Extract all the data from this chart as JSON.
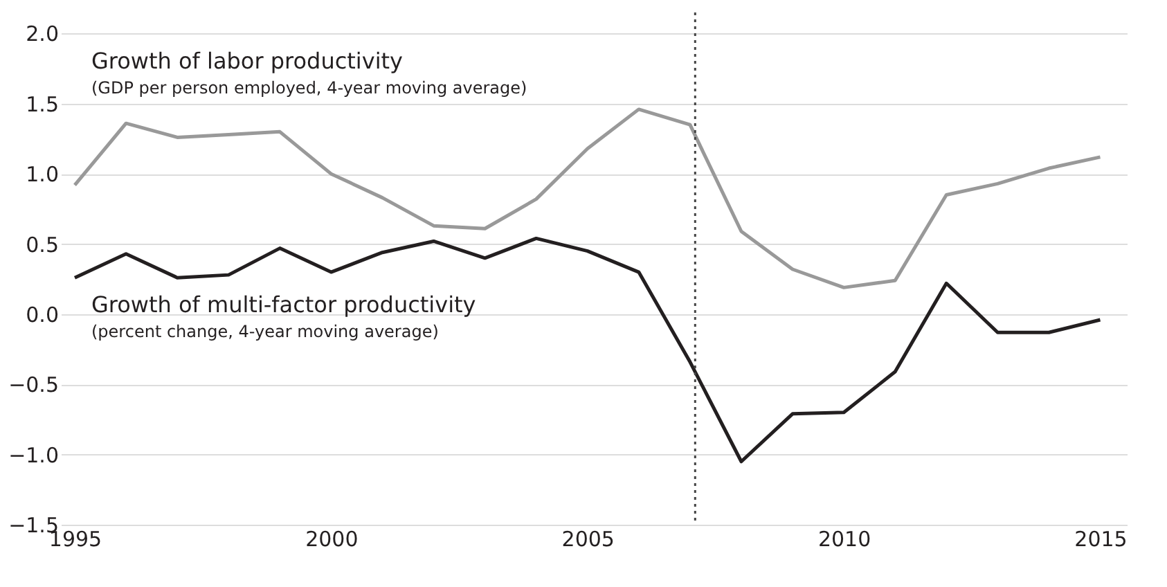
{
  "chart_data": {
    "type": "line",
    "x": [
      1995,
      1996,
      1997,
      1998,
      1999,
      2000,
      2001,
      2002,
      2003,
      2004,
      2005,
      2006,
      2007,
      2008,
      2009,
      2010,
      2011,
      2012,
      2013,
      2014,
      2015
    ],
    "series": [
      {
        "name": "Growth of labor productivity",
        "color": "#999999",
        "values": [
          0.92,
          1.36,
          1.26,
          1.28,
          1.3,
          1.0,
          0.83,
          0.63,
          0.61,
          0.82,
          1.18,
          1.46,
          1.35,
          0.59,
          0.32,
          0.19,
          0.24,
          0.85,
          0.93,
          1.04,
          1.12
        ]
      },
      {
        "name": "Growth of multi-factor productivity",
        "color": "#231f20",
        "values": [
          0.26,
          0.43,
          0.26,
          0.28,
          0.47,
          0.3,
          0.44,
          0.52,
          0.4,
          0.54,
          0.45,
          0.3,
          -0.34,
          -1.05,
          -0.71,
          -0.7,
          -0.41,
          0.22,
          -0.13,
          -0.13,
          -0.04
        ]
      }
    ],
    "annotations": [
      "(GDP per person employed, 4-year moving average)",
      "(percent change, 4-year moving average)"
    ],
    "xlim": [
      1994.73,
      2015.52
    ],
    "xticks": [
      1995,
      2000,
      2005,
      2010,
      2015
    ],
    "ylim": [
      -1.5,
      2.15
    ],
    "yticks": [
      {
        "value": -1.5,
        "label": "−1.5"
      },
      {
        "value": -1.0,
        "label": "−1.0"
      },
      {
        "value": -0.5,
        "label": "−0.5"
      },
      {
        "value": 0,
        "label": "0.0"
      },
      {
        "value": 0.5,
        "label": "0.5"
      },
      {
        "value": 1.0,
        "label": "1.0"
      },
      {
        "value": 1.5,
        "label": "1.5"
      },
      {
        "value": 2.0,
        "label": "2.0"
      }
    ],
    "ref_lines": [
      {
        "axis": "x",
        "value": 2007.1,
        "color": "#444444",
        "line_style": "dotted"
      }
    ],
    "grid": "y",
    "legend": false,
    "marker": "none",
    "line_style": "solid"
  }
}
